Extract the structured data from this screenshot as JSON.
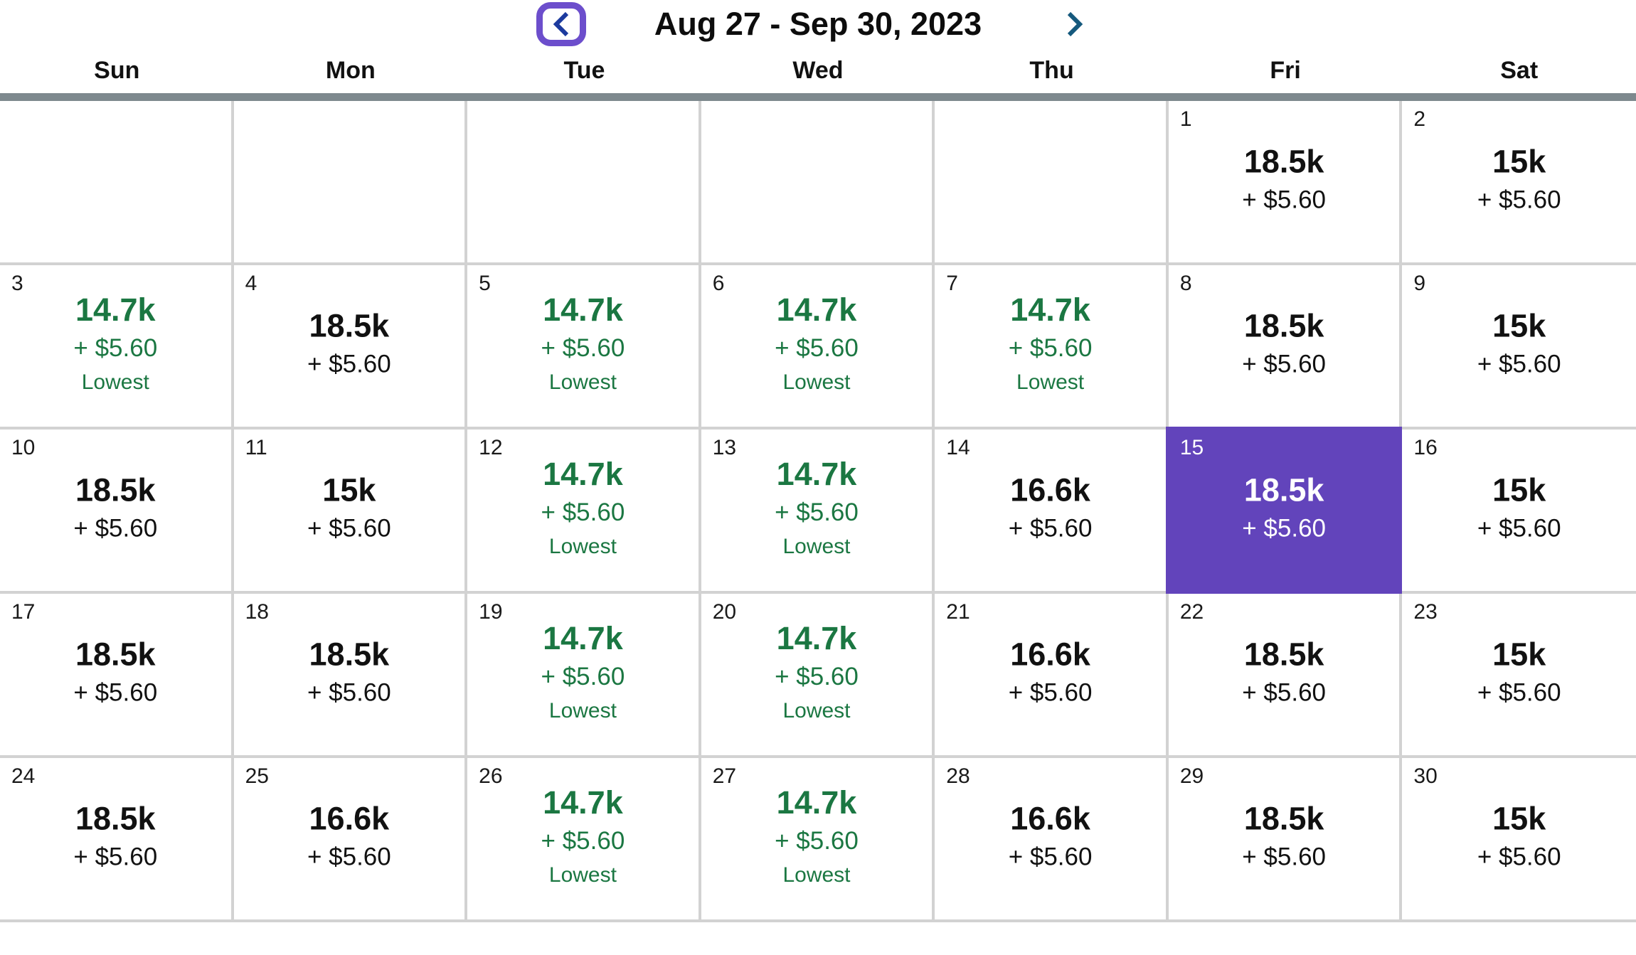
{
  "header": {
    "title": "Aug 27 - Sep 30, 2023"
  },
  "weekdays": [
    "Sun",
    "Mon",
    "Tue",
    "Wed",
    "Thu",
    "Fri",
    "Sat"
  ],
  "colors": {
    "selected_bg": "#6244BB",
    "lowest_green": "#1B7742",
    "weekday_bar": "#7E898E",
    "grid_line": "#D2D2D2",
    "focus_ring_purple": "#6C4ECC",
    "chevron_left_blue": "#1C3A9E",
    "chevron_right_blue": "#15597D",
    "text_black": "#111111"
  },
  "calendar": {
    "lowest_label": "Lowest",
    "weeks": [
      [
        {
          "empty": true
        },
        {
          "empty": true
        },
        {
          "empty": true
        },
        {
          "empty": true
        },
        {
          "empty": true
        },
        {
          "day": "1",
          "miles": "18.5k",
          "fees": "+ $5.60",
          "lowest": false,
          "selected": false
        },
        {
          "day": "2",
          "miles": "15k",
          "fees": "+ $5.60",
          "lowest": false,
          "selected": false
        }
      ],
      [
        {
          "day": "3",
          "miles": "14.7k",
          "fees": "+ $5.60",
          "lowest": true,
          "selected": false
        },
        {
          "day": "4",
          "miles": "18.5k",
          "fees": "+ $5.60",
          "lowest": false,
          "selected": false
        },
        {
          "day": "5",
          "miles": "14.7k",
          "fees": "+ $5.60",
          "lowest": true,
          "selected": false
        },
        {
          "day": "6",
          "miles": "14.7k",
          "fees": "+ $5.60",
          "lowest": true,
          "selected": false
        },
        {
          "day": "7",
          "miles": "14.7k",
          "fees": "+ $5.60",
          "lowest": true,
          "selected": false
        },
        {
          "day": "8",
          "miles": "18.5k",
          "fees": "+ $5.60",
          "lowest": false,
          "selected": false
        },
        {
          "day": "9",
          "miles": "15k",
          "fees": "+ $5.60",
          "lowest": false,
          "selected": false
        }
      ],
      [
        {
          "day": "10",
          "miles": "18.5k",
          "fees": "+ $5.60",
          "lowest": false,
          "selected": false
        },
        {
          "day": "11",
          "miles": "15k",
          "fees": "+ $5.60",
          "lowest": false,
          "selected": false
        },
        {
          "day": "12",
          "miles": "14.7k",
          "fees": "+ $5.60",
          "lowest": true,
          "selected": false
        },
        {
          "day": "13",
          "miles": "14.7k",
          "fees": "+ $5.60",
          "lowest": true,
          "selected": false
        },
        {
          "day": "14",
          "miles": "16.6k",
          "fees": "+ $5.60",
          "lowest": false,
          "selected": false
        },
        {
          "day": "15",
          "miles": "18.5k",
          "fees": "+ $5.60",
          "lowest": false,
          "selected": true
        },
        {
          "day": "16",
          "miles": "15k",
          "fees": "+ $5.60",
          "lowest": false,
          "selected": false
        }
      ],
      [
        {
          "day": "17",
          "miles": "18.5k",
          "fees": "+ $5.60",
          "lowest": false,
          "selected": false
        },
        {
          "day": "18",
          "miles": "18.5k",
          "fees": "+ $5.60",
          "lowest": false,
          "selected": false
        },
        {
          "day": "19",
          "miles": "14.7k",
          "fees": "+ $5.60",
          "lowest": true,
          "selected": false
        },
        {
          "day": "20",
          "miles": "14.7k",
          "fees": "+ $5.60",
          "lowest": true,
          "selected": false
        },
        {
          "day": "21",
          "miles": "16.6k",
          "fees": "+ $5.60",
          "lowest": false,
          "selected": false
        },
        {
          "day": "22",
          "miles": "18.5k",
          "fees": "+ $5.60",
          "lowest": false,
          "selected": false
        },
        {
          "day": "23",
          "miles": "15k",
          "fees": "+ $5.60",
          "lowest": false,
          "selected": false
        }
      ],
      [
        {
          "day": "24",
          "miles": "18.5k",
          "fees": "+ $5.60",
          "lowest": false,
          "selected": false
        },
        {
          "day": "25",
          "miles": "16.6k",
          "fees": "+ $5.60",
          "lowest": false,
          "selected": false
        },
        {
          "day": "26",
          "miles": "14.7k",
          "fees": "+ $5.60",
          "lowest": true,
          "selected": false
        },
        {
          "day": "27",
          "miles": "14.7k",
          "fees": "+ $5.60",
          "lowest": true,
          "selected": false
        },
        {
          "day": "28",
          "miles": "16.6k",
          "fees": "+ $5.60",
          "lowest": false,
          "selected": false
        },
        {
          "day": "29",
          "miles": "18.5k",
          "fees": "+ $5.60",
          "lowest": false,
          "selected": false
        },
        {
          "day": "30",
          "miles": "15k",
          "fees": "+ $5.60",
          "lowest": false,
          "selected": false
        }
      ]
    ]
  }
}
